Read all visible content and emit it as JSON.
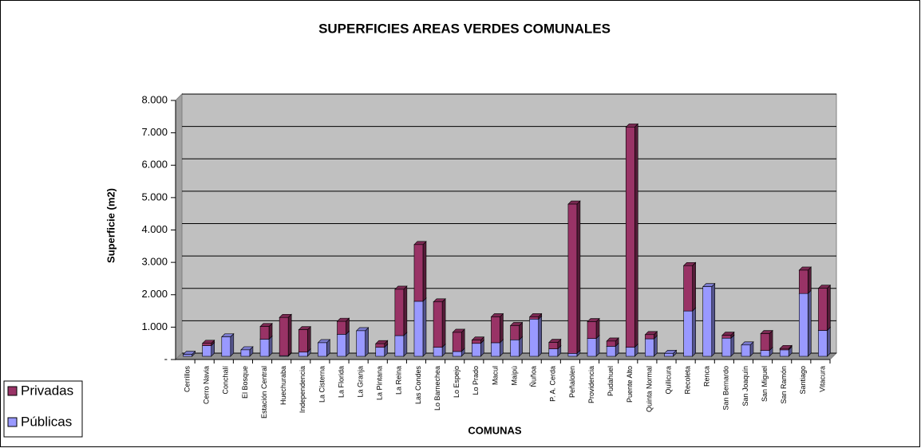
{
  "chart_data": {
    "type": "bar",
    "stacked": true,
    "title": "SUPERFICIES AREAS VERDES COMUNALES",
    "x_label": "COMUNAS",
    "y_label": "Superficie (m2)",
    "categories": [
      "Cerrillos",
      "Cerro Navia",
      "Conchalí",
      "El Bosque",
      "Estación Central",
      "Huechuraba",
      "Independencia",
      "La Cisterna",
      "La Florida",
      "La Granja",
      "La Pintana",
      "La Reina",
      "Las Condes",
      "Lo Barnechea",
      "Lo Espejo",
      "Lo Prado",
      "Macul",
      "Maipú",
      "Ñuñoa",
      "P. A. Cerda",
      "Peñalolen",
      "Providencia",
      "Pudahuel",
      "Puente Alto",
      "Quinta Normal",
      "Quilicura",
      "Recoleta",
      "Renca",
      "San Bernardo",
      "San Joaquín",
      "San Miguel",
      "San Ramón",
      "Santiago",
      "Vitacura"
    ],
    "series": [
      {
        "name": "Públicas",
        "color": "#9999ff",
        "values": [
          60,
          330,
          600,
          200,
          530,
          20,
          130,
          420,
          680,
          790,
          280,
          640,
          1700,
          280,
          150,
          400,
          420,
          510,
          1150,
          230,
          90,
          550,
          310,
          280,
          540,
          90,
          1400,
          2150,
          560,
          350,
          180,
          200,
          1940,
          800
        ]
      },
      {
        "name": "Privadas",
        "color": "#993366",
        "values": [
          0,
          70,
          0,
          0,
          390,
          1180,
          690,
          0,
          400,
          0,
          110,
          1430,
          1750,
          1400,
          590,
          100,
          800,
          440,
          70,
          200,
          4610,
          520,
          160,
          6800,
          130,
          0,
          1400,
          0,
          90,
          0,
          520,
          40,
          720,
          1300
        ]
      }
    ],
    "ylim": [
      0,
      8000
    ],
    "yticks": [
      {
        "value": 0,
        "label": "-"
      },
      {
        "value": 1000,
        "label": "1.000"
      },
      {
        "value": 2000,
        "label": "2.000"
      },
      {
        "value": 3000,
        "label": "3.000"
      },
      {
        "value": 4000,
        "label": "4.000"
      },
      {
        "value": 5000,
        "label": "5.000"
      },
      {
        "value": 6000,
        "label": "6.000"
      },
      {
        "value": 7000,
        "label": "7.000"
      },
      {
        "value": 8000,
        "label": "8.000"
      }
    ],
    "grid": true,
    "legend": "bottom-left"
  }
}
